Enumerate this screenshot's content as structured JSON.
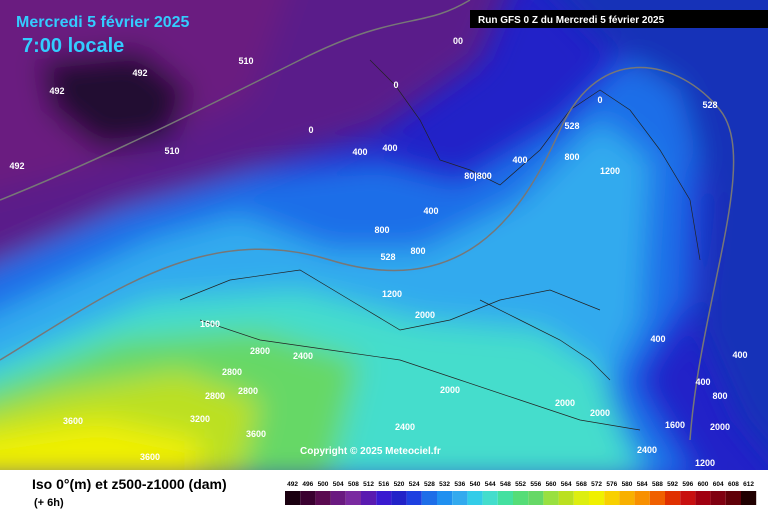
{
  "header": {
    "date": "Mercredi 5 février 2025",
    "time": "7:00 locale",
    "run": "Run GFS 0 Z du Mercredi 5 février 2025"
  },
  "map": {
    "copyright": "Copyright © 2025 Meteociel.fr",
    "labels": [
      "492",
      "492",
      "492",
      "510",
      "510",
      "00",
      "0",
      "0",
      "0",
      "400",
      "400",
      "400",
      "400",
      "528",
      "528",
      "528",
      "800",
      "800",
      "800",
      "80|800",
      "1200",
      "1200",
      "2000",
      "2400",
      "2800",
      "2800",
      "2800",
      "2800",
      "3200",
      "3600",
      "3600",
      "3600",
      "1600",
      "1600",
      "2000",
      "2000",
      "2000",
      "2400",
      "2400",
      "400",
      "400",
      "400",
      "1200",
      "800",
      "2000"
    ]
  },
  "legend": {
    "title": "Iso 0°(m) et z500-z1000 (dam)",
    "step": "(+ 6h)",
    "scale": [
      492,
      496,
      500,
      504,
      508,
      512,
      516,
      520,
      524,
      528,
      532,
      536,
      540,
      544,
      548,
      552,
      556,
      560,
      564,
      568,
      572,
      576,
      580,
      584,
      588,
      592,
      596,
      600,
      604,
      608,
      612
    ]
  }
}
